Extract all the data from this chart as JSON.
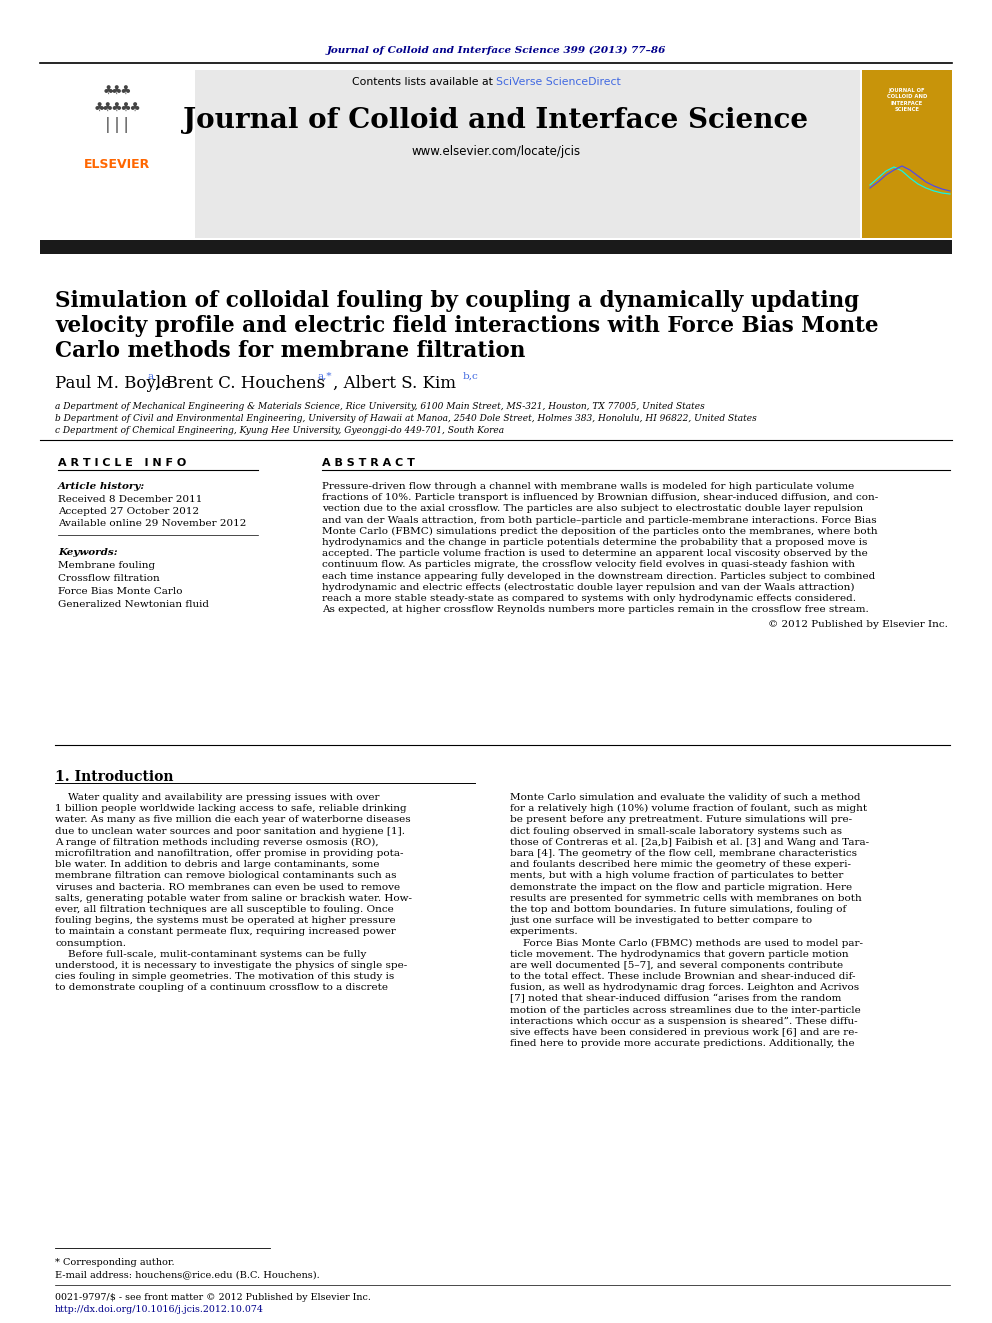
{
  "journal_ref": "Journal of Colloid and Interface Science 399 (2013) 77–86",
  "journal_name": "Journal of Colloid and Interface Science",
  "journal_url": "www.elsevier.com/locate/jcis",
  "contents_text": "Contents lists available at ",
  "sciverse_text": "SciVerse ScienceDirect",
  "affil_a": "a Department of Mechanical Engineering & Materials Science, Rice University, 6100 Main Street, MS-321, Houston, TX 77005, United States",
  "affil_b": "b Department of Civil and Environmental Engineering, University of Hawaii at Manoa, 2540 Dole Street, Holmes 383, Honolulu, HI 96822, United States",
  "affil_c": "c Department of Chemical Engineering, Kyung Hee University, Gyeonggi-do 449-701, South Korea",
  "article_info_label": "A R T I C L E   I N F O",
  "abstract_label": "A B S T R A C T",
  "article_history_label": "Article history:",
  "received": "Received 8 December 2011",
  "accepted": "Accepted 27 October 2012",
  "available": "Available online 29 November 2012",
  "keywords_label": "Keywords:",
  "keywords": [
    "Membrane fouling",
    "Crossflow filtration",
    "Force Bias Monte Carlo",
    "Generalized Newtonian fluid"
  ],
  "abstract_lines": [
    "Pressure-driven flow through a channel with membrane walls is modeled for high particulate volume",
    "fractions of 10%. Particle transport is influenced by Brownian diffusion, shear-induced diffusion, and con-",
    "vection due to the axial crossflow. The particles are also subject to electrostatic double layer repulsion",
    "and van der Waals attraction, from both particle–particle and particle-membrane interactions. Force Bias",
    "Monte Carlo (FBMC) simulations predict the deposition of the particles onto the membranes, where both",
    "hydrodynamics and the change in particle potentials determine the probability that a proposed move is",
    "accepted. The particle volume fraction is used to determine an apparent local viscosity observed by the",
    "continuum flow. As particles migrate, the crossflow velocity field evolves in quasi-steady fashion with",
    "each time instance appearing fully developed in the downstream direction. Particles subject to combined",
    "hydrodynamic and electric effects (electrostatic double layer repulsion and van der Waals attraction)",
    "reach a more stable steady-state as compared to systems with only hydrodynamic effects considered.",
    "As expected, at higher crossflow Reynolds numbers more particles remain in the crossflow free stream.",
    "© 2012 Published by Elsevier Inc."
  ],
  "section1_title": "1. Introduction",
  "intro_col1_lines": [
    "    Water quality and availability are pressing issues with over",
    "1 billion people worldwide lacking access to safe, reliable drinking",
    "water. As many as five million die each year of waterborne diseases",
    "due to unclean water sources and poor sanitation and hygiene [1].",
    "A range of filtration methods including reverse osmosis (RO),",
    "microfiltration and nanofiltration, offer promise in providing pota-",
    "ble water. In addition to debris and large contaminants, some",
    "membrane filtration can remove biological contaminants such as",
    "viruses and bacteria. RO membranes can even be used to remove",
    "salts, generating potable water from saline or brackish water. How-",
    "ever, all filtration techniques are all susceptible to fouling. Once",
    "fouling begins, the systems must be operated at higher pressure",
    "to maintain a constant permeate flux, requiring increased power",
    "consumption.",
    "    Before full-scale, mulit-contaminant systems can be fully",
    "understood, it is necessary to investigate the physics of single spe-",
    "cies fouling in simple geometries. The motivation of this study is",
    "to demonstrate coupling of a continuum crossflow to a discrete"
  ],
  "intro_col2_lines": [
    "Monte Carlo simulation and evaluate the validity of such a method",
    "for a relatively high (10%) volume fraction of foulant, such as might",
    "be present before any pretreatment. Future simulations will pre-",
    "dict fouling observed in small-scale laboratory systems such as",
    "those of Contreras et al. [2a,b] Faibish et al. [3] and Wang and Tara-",
    "bara [4]. The geometry of the flow cell, membrane characteristics",
    "and foulants described here mimic the geometry of these experi-",
    "ments, but with a high volume fraction of particulates to better",
    "demonstrate the impact on the flow and particle migration. Here",
    "results are presented for symmetric cells with membranes on both",
    "the top and bottom boundaries. In future simulations, fouling of",
    "just one surface will be investigated to better compare to",
    "experiments.",
    "    Force Bias Monte Carlo (FBMC) methods are used to model par-",
    "ticle movement. The hydrodynamics that govern particle motion",
    "are well documented [5–7], and several components contribute",
    "to the total effect. These include Brownian and shear-induced dif-",
    "fusion, as well as hydrodynamic drag forces. Leighton and Acrivos",
    "[7] noted that shear-induced diffusion “arises from the random",
    "motion of the particles across streamlines due to the inter-particle",
    "interactions which occur as a suspension is sheared”. These diffu-",
    "sive effects have been considered in previous work [6] and are re-",
    "fined here to provide more accurate predictions. Additionally, the"
  ],
  "footnote_star": "* Corresponding author.",
  "footnote_email": "E-mail address: houchens@rice.edu (B.C. Houchens).",
  "footnote_issn": "0021-9797/$ - see front matter © 2012 Published by Elsevier Inc.",
  "footnote_doi": "http://dx.doi.org/10.1016/j.jcis.2012.10.074",
  "bg_color": "#ffffff",
  "header_bg": "#e8e8e8",
  "dark_bar_color": "#1a1a1a",
  "journal_ref_color": "#00008B",
  "sciverse_color": "#4169E1",
  "elsevier_color": "#FF6600"
}
